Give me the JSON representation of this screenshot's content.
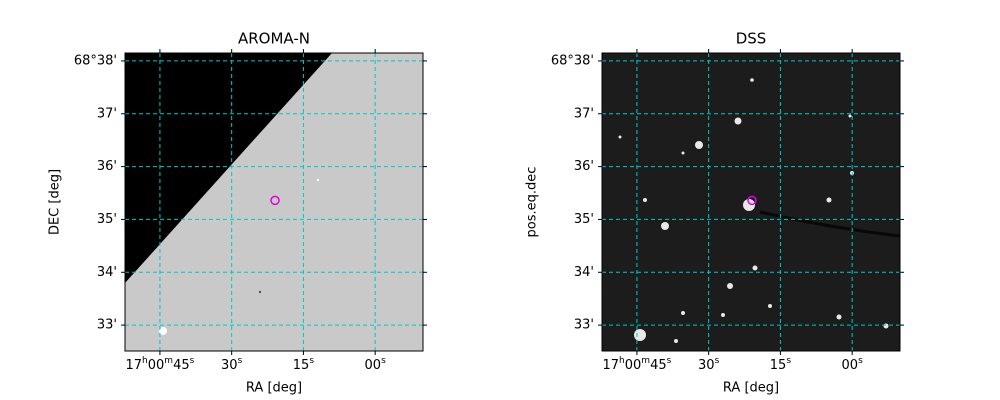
{
  "chart_data": [
    {
      "type": "image",
      "title": "AROMA-N",
      "xlabel": "RA [deg]",
      "ylabel": "DEC [deg]",
      "xlim": [
        52.3,
        -10.0
      ],
      "ylim": [
        32.51,
        38.15
      ],
      "xticks": [
        {
          "value": 45,
          "label": "17h00m45s"
        },
        {
          "value": 30,
          "label": "30s"
        },
        {
          "value": 15,
          "label": "15s"
        },
        {
          "value": 0,
          "label": "00s"
        }
      ],
      "yticks": [
        {
          "value": 38,
          "label": "68°38'"
        },
        {
          "value": 37,
          "label": "37'"
        },
        {
          "value": 36,
          "label": "36'"
        },
        {
          "value": 35,
          "label": "35'"
        },
        {
          "value": 34,
          "label": "34'"
        },
        {
          "value": 33,
          "label": "33'"
        }
      ],
      "grid": true,
      "marker": {
        "x": [
          20.94
        ],
        "y": [
          35.36
        ],
        "color": "#e000e0"
      }
    },
    {
      "type": "image",
      "title": "DSS",
      "xlabel": "RA [deg]",
      "ylabel": "pos.eq.dec",
      "xlim": [
        52.3,
        -10.0
      ],
      "ylim": [
        32.51,
        38.15
      ],
      "xticks": [
        {
          "value": 45,
          "label": "17h00m45s"
        },
        {
          "value": 30,
          "label": "30s"
        },
        {
          "value": 15,
          "label": "15s"
        },
        {
          "value": 0,
          "label": "00s"
        }
      ],
      "yticks": [
        {
          "value": 38,
          "label": "68°38'"
        },
        {
          "value": 37,
          "label": "37'"
        },
        {
          "value": 36,
          "label": "36'"
        },
        {
          "value": 35,
          "label": "35'"
        },
        {
          "value": 34,
          "label": "34'"
        },
        {
          "value": 33,
          "label": "33'"
        }
      ],
      "grid": true,
      "marker": {
        "x": [
          20.94
        ],
        "y": [
          35.36
        ],
        "color": "#e000e0"
      }
    }
  ]
}
